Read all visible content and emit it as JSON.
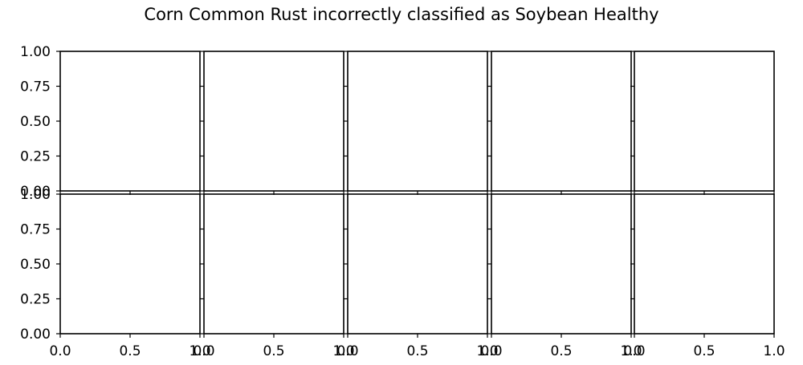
{
  "figure": {
    "title": "Corn Common Rust incorrectly classified as Soybean Healthy"
  },
  "chart_data": {
    "type": "grid-of-empty-axes",
    "title": "Corn Common Rust incorrectly classified as Soybean Healthy",
    "rows": 2,
    "cols": 5,
    "xlim": [
      0.0,
      1.0
    ],
    "ylim": [
      0.0,
      1.0
    ],
    "x_tick_values": [
      0.0,
      0.5,
      1.0
    ],
    "x_tick_labels": [
      "0.0",
      "0.5",
      "1.0"
    ],
    "y_tick_values": [
      0.0,
      0.25,
      0.5,
      0.75,
      1.0
    ],
    "y_tick_labels": [
      "0.00",
      "0.25",
      "0.50",
      "0.75",
      "1.00"
    ],
    "grid": false,
    "xlabel": "",
    "ylabel": "",
    "series": []
  }
}
